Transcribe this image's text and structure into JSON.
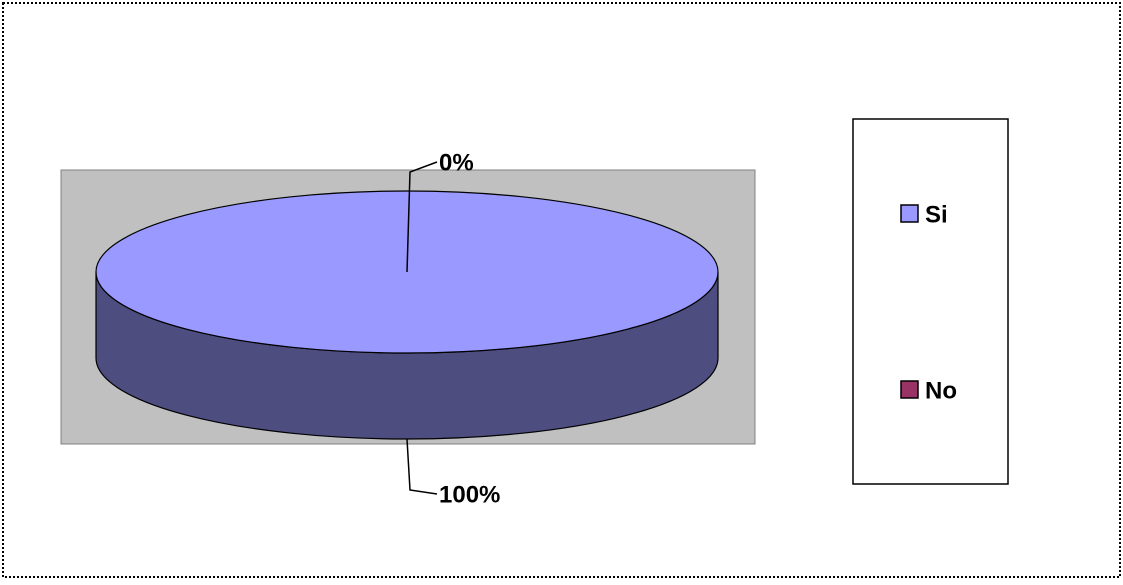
{
  "chart_data": {
    "type": "pie",
    "categories": [
      "Si",
      "No"
    ],
    "values": [
      100,
      0
    ],
    "value_labels": [
      "100%",
      "0%"
    ],
    "colors": [
      "#9999ff",
      "#993366"
    ],
    "legend": "right"
  }
}
